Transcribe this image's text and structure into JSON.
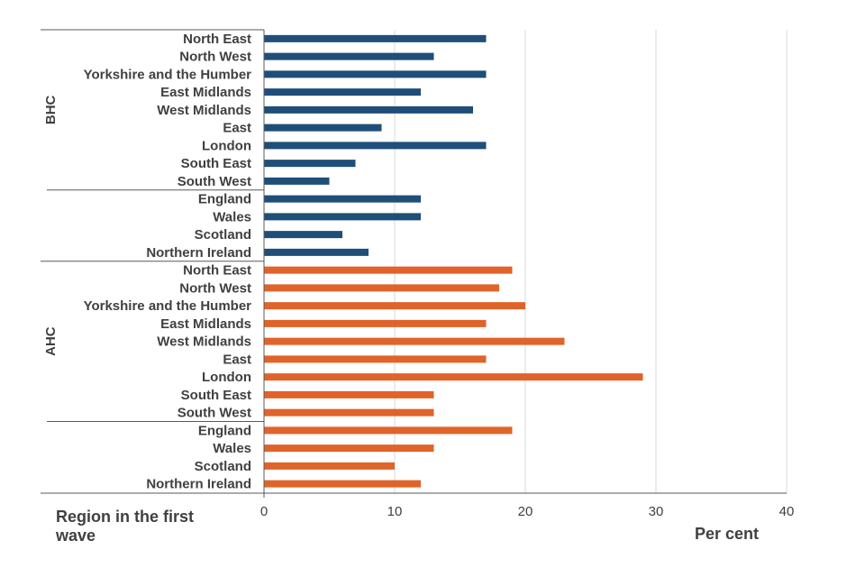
{
  "chart_data": {
    "type": "bar",
    "orientation": "horizontal",
    "xlabel": "Per cent",
    "ylabel": "Region in the first wave",
    "xlim": [
      0,
      40
    ],
    "xticks": [
      0,
      10,
      20,
      30,
      40
    ],
    "grid": true,
    "groups": [
      {
        "name": "BHC",
        "color": "#1f4e79",
        "categories": [
          "North East",
          "North West",
          "Yorkshire and the Humber",
          "East Midlands",
          "West Midlands",
          "East",
          "London",
          "South East",
          "South West",
          "England",
          "Wales",
          "Scotland",
          "Northern Ireland"
        ],
        "values": [
          17,
          13,
          17,
          12,
          16,
          9,
          17,
          7,
          5,
          12,
          12,
          6,
          8
        ]
      },
      {
        "name": "AHC",
        "color": "#e0632a",
        "categories": [
          "North East",
          "North West",
          "Yorkshire and the Humber",
          "East Midlands",
          "West Midlands",
          "East",
          "London",
          "South East",
          "South West",
          "England",
          "Wales",
          "Scotland",
          "Northern Ireland"
        ],
        "values": [
          19,
          18,
          20,
          17,
          23,
          17,
          29,
          13,
          13,
          19,
          13,
          10,
          12
        ]
      }
    ]
  }
}
